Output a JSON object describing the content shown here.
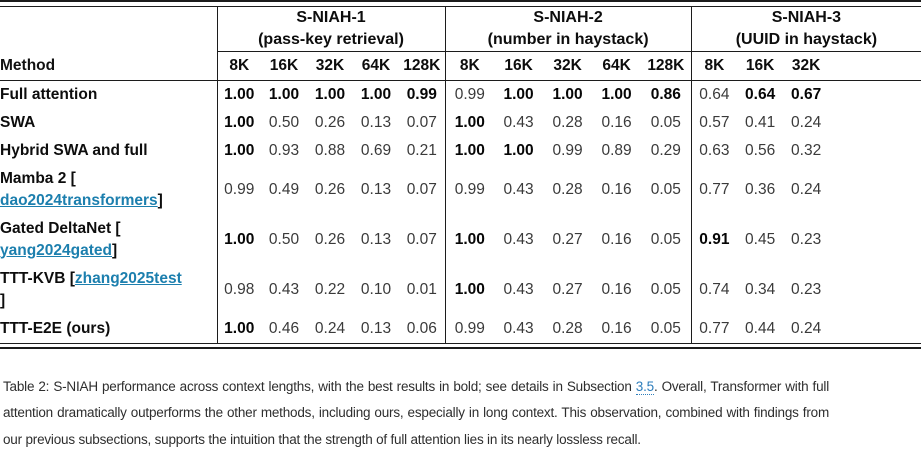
{
  "colors": {
    "table_link": "#1c7fae",
    "caption_link": "#2e7ebc",
    "rule": "#1c1c1c"
  },
  "table": {
    "method_header": "Method",
    "groups": [
      {
        "title": "S-NIAH-1",
        "subtitle": "(pass-key retrieval)",
        "columns": [
          "8K",
          "16K",
          "32K",
          "64K",
          "128K"
        ]
      },
      {
        "title": "S-NIAH-2",
        "subtitle": "(number in haystack)",
        "columns": [
          "8K",
          "16K",
          "32K",
          "64K",
          "128K"
        ]
      },
      {
        "title": "S-NIAH-3",
        "subtitle": "(UUID in haystack)",
        "columns": [
          "8K",
          "16K",
          "32K"
        ]
      }
    ],
    "rows": [
      {
        "method_lines": [
          [
            {
              "text": "Full attention"
            }
          ]
        ],
        "s1": [
          "1.00",
          "1.00",
          "1.00",
          "1.00",
          "0.99"
        ],
        "s1_bold": [
          true,
          true,
          true,
          true,
          true
        ],
        "s2": [
          "0.99",
          "1.00",
          "1.00",
          "1.00",
          "0.86"
        ],
        "s2_bold": [
          false,
          true,
          true,
          true,
          true
        ],
        "s3": [
          "0.64",
          "0.64",
          "0.67"
        ],
        "s3_bold": [
          false,
          true,
          true
        ]
      },
      {
        "method_lines": [
          [
            {
              "text": "SWA"
            }
          ]
        ],
        "s1": [
          "1.00",
          "0.50",
          "0.26",
          "0.13",
          "0.07"
        ],
        "s1_bold": [
          true,
          false,
          false,
          false,
          false
        ],
        "s2": [
          "1.00",
          "0.43",
          "0.28",
          "0.16",
          "0.05"
        ],
        "s2_bold": [
          true,
          false,
          false,
          false,
          false
        ],
        "s3": [
          "0.57",
          "0.41",
          "0.24"
        ],
        "s3_bold": [
          false,
          false,
          false
        ]
      },
      {
        "method_lines": [
          [
            {
              "text": "Hybrid SWA and full"
            }
          ]
        ],
        "s1": [
          "1.00",
          "0.93",
          "0.88",
          "0.69",
          "0.21"
        ],
        "s1_bold": [
          true,
          false,
          false,
          false,
          false
        ],
        "s2": [
          "1.00",
          "1.00",
          "0.99",
          "0.89",
          "0.29"
        ],
        "s2_bold": [
          true,
          true,
          false,
          false,
          false
        ],
        "s3": [
          "0.63",
          "0.56",
          "0.32"
        ],
        "s3_bold": [
          false,
          false,
          false
        ]
      },
      {
        "method_lines": [
          [
            {
              "text": "Mamba 2 ["
            }
          ],
          [
            {
              "text": "dao2024transformers",
              "link": true
            },
            {
              "text": "]"
            }
          ]
        ],
        "s1": [
          "0.99",
          "0.49",
          "0.26",
          "0.13",
          "0.07"
        ],
        "s1_bold": [
          false,
          false,
          false,
          false,
          false
        ],
        "s2": [
          "0.99",
          "0.43",
          "0.28",
          "0.16",
          "0.05"
        ],
        "s2_bold": [
          false,
          false,
          false,
          false,
          false
        ],
        "s3": [
          "0.77",
          "0.36",
          "0.24"
        ],
        "s3_bold": [
          false,
          false,
          false
        ]
      },
      {
        "method_lines": [
          [
            {
              "text": "Gated DeltaNet ["
            }
          ],
          [
            {
              "text": "yang2024gated",
              "link": true
            },
            {
              "text": "]"
            }
          ]
        ],
        "s1": [
          "1.00",
          "0.50",
          "0.26",
          "0.13",
          "0.07"
        ],
        "s1_bold": [
          true,
          false,
          false,
          false,
          false
        ],
        "s2": [
          "1.00",
          "0.43",
          "0.27",
          "0.16",
          "0.05"
        ],
        "s2_bold": [
          true,
          false,
          false,
          false,
          false
        ],
        "s3": [
          "0.91",
          "0.45",
          "0.23"
        ],
        "s3_bold": [
          true,
          false,
          false
        ]
      },
      {
        "method_lines": [
          [
            {
              "text": "TTT-KVB ["
            },
            {
              "text": "zhang2025test",
              "link": true
            }
          ],
          [
            {
              "text": "]"
            }
          ]
        ],
        "s1": [
          "0.98",
          "0.43",
          "0.22",
          "0.10",
          "0.01"
        ],
        "s1_bold": [
          false,
          false,
          false,
          false,
          false
        ],
        "s2": [
          "1.00",
          "0.43",
          "0.27",
          "0.16",
          "0.05"
        ],
        "s2_bold": [
          true,
          false,
          false,
          false,
          false
        ],
        "s3": [
          "0.74",
          "0.34",
          "0.23"
        ],
        "s3_bold": [
          false,
          false,
          false
        ]
      },
      {
        "method_lines": [
          [
            {
              "text": "TTT-E2E (ours)"
            }
          ]
        ],
        "s1": [
          "1.00",
          "0.46",
          "0.24",
          "0.13",
          "0.06"
        ],
        "s1_bold": [
          true,
          false,
          false,
          false,
          false
        ],
        "s2": [
          "0.99",
          "0.43",
          "0.28",
          "0.16",
          "0.05"
        ],
        "s2_bold": [
          false,
          false,
          false,
          false,
          false
        ],
        "s3": [
          "0.77",
          "0.44",
          "0.24"
        ],
        "s3_bold": [
          false,
          false,
          false
        ]
      }
    ]
  },
  "caption": {
    "parts": [
      {
        "text": "Table 2: S-NIAH performance across context lengths, with the best results in bold; see details in Subsection "
      },
      {
        "text": "3.5",
        "link": true
      },
      {
        "text": ". Overall, Transformer with full attention dramatically outperforms the other methods, including ours, especially in long context. This observation, combined with findings from our previous subsections, supports the intuition that the strength of full attention lies in its nearly lossless recall."
      }
    ]
  }
}
